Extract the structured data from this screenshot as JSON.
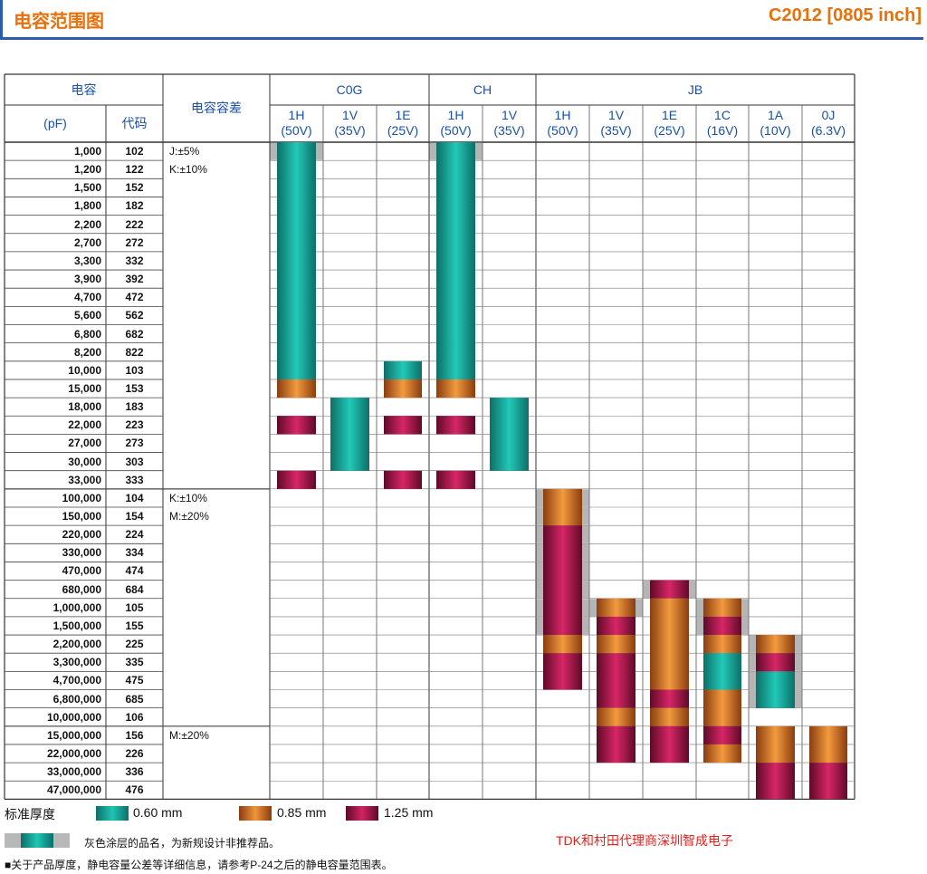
{
  "header": {
    "title": "电容范围图",
    "part": "C2012 [0805 inch]"
  },
  "table": {
    "head_cap": "电容",
    "head_pf": "(pF)",
    "head_code": "代码",
    "head_tol": "电容容差",
    "groups": [
      {
        "name": "C0G"
      },
      {
        "name": "CH"
      },
      {
        "name": "JB"
      }
    ],
    "volts": [
      {
        "top": "1H",
        "bot": "(50V)"
      },
      {
        "top": "1V",
        "bot": "(35V)"
      },
      {
        "top": "1E",
        "bot": "(25V)"
      },
      {
        "top": "1H",
        "bot": "(50V)"
      },
      {
        "top": "1V",
        "bot": "(35V)"
      },
      {
        "top": "1H",
        "bot": "(50V)"
      },
      {
        "top": "1V",
        "bot": "(35V)"
      },
      {
        "top": "1E",
        "bot": "(25V)"
      },
      {
        "top": "1C",
        "bot": "(16V)"
      },
      {
        "top": "1A",
        "bot": "(10V)"
      },
      {
        "top": "0J",
        "bot": "(6.3V)"
      }
    ],
    "rows": [
      {
        "v": "1,000",
        "c": "102"
      },
      {
        "v": "1,200",
        "c": "122"
      },
      {
        "v": "1,500",
        "c": "152"
      },
      {
        "v": "1,800",
        "c": "182"
      },
      {
        "v": "2,200",
        "c": "222"
      },
      {
        "v": "2,700",
        "c": "272"
      },
      {
        "v": "3,300",
        "c": "332"
      },
      {
        "v": "3,900",
        "c": "392"
      },
      {
        "v": "4,700",
        "c": "472"
      },
      {
        "v": "5,600",
        "c": "562"
      },
      {
        "v": "6,800",
        "c": "682"
      },
      {
        "v": "8,200",
        "c": "822"
      },
      {
        "v": "10,000",
        "c": "103"
      },
      {
        "v": "15,000",
        "c": "153"
      },
      {
        "v": "18,000",
        "c": "183"
      },
      {
        "v": "22,000",
        "c": "223"
      },
      {
        "v": "27,000",
        "c": "273"
      },
      {
        "v": "30,000",
        "c": "303"
      },
      {
        "v": "33,000",
        "c": "333"
      },
      {
        "v": "100,000",
        "c": "104"
      },
      {
        "v": "150,000",
        "c": "154"
      },
      {
        "v": "220,000",
        "c": "224"
      },
      {
        "v": "330,000",
        "c": "334"
      },
      {
        "v": "470,000",
        "c": "474"
      },
      {
        "v": "680,000",
        "c": "684"
      },
      {
        "v": "1,000,000",
        "c": "105"
      },
      {
        "v": "1,500,000",
        "c": "155"
      },
      {
        "v": "2,200,000",
        "c": "225"
      },
      {
        "v": "3,300,000",
        "c": "335"
      },
      {
        "v": "4,700,000",
        "c": "475"
      },
      {
        "v": "6,800,000",
        "c": "685"
      },
      {
        "v": "10,000,000",
        "c": "106"
      },
      {
        "v": "15,000,000",
        "c": "156"
      },
      {
        "v": "22,000,000",
        "c": "226"
      },
      {
        "v": "33,000,000",
        "c": "336"
      },
      {
        "v": "47,000,000",
        "c": "476"
      }
    ],
    "tolerances": {
      "a1": "J:±5%",
      "a2": "K:±10%",
      "b1": "K:±10%",
      "b2": "M:±20%",
      "c1": "M:±20%"
    }
  },
  "ranges": [
    {
      "col": 0,
      "r0": 0,
      "r1": 13,
      "segs": [
        [
          0,
          12,
          "t"
        ],
        [
          13,
          13,
          "o"
        ]
      ],
      "grey": [
        0
      ]
    },
    {
      "col": 0,
      "r0": 15,
      "r1": 15,
      "segs": [
        [
          15,
          15,
          "m"
        ]
      ],
      "grey": []
    },
    {
      "col": 0,
      "r0": 18,
      "r1": 18,
      "segs": [
        [
          18,
          18,
          "m"
        ]
      ],
      "grey": []
    },
    {
      "col": 1,
      "r0": 14,
      "r1": 17,
      "segs": [
        [
          14,
          17,
          "t"
        ]
      ],
      "grey": []
    },
    {
      "col": 2,
      "r0": 12,
      "r1": 13,
      "segs": [
        [
          12,
          12,
          "t"
        ],
        [
          13,
          13,
          "o"
        ]
      ],
      "grey": []
    },
    {
      "col": 2,
      "r0": 15,
      "r1": 15,
      "segs": [
        [
          15,
          15,
          "m"
        ]
      ],
      "grey": []
    },
    {
      "col": 2,
      "r0": 18,
      "r1": 18,
      "segs": [
        [
          18,
          18,
          "m"
        ]
      ],
      "grey": []
    },
    {
      "col": 3,
      "r0": 0,
      "r1": 13,
      "segs": [
        [
          0,
          12,
          "t"
        ],
        [
          13,
          13,
          "o"
        ]
      ],
      "grey": [
        0
      ]
    },
    {
      "col": 3,
      "r0": 15,
      "r1": 15,
      "segs": [
        [
          15,
          15,
          "m"
        ]
      ],
      "grey": []
    },
    {
      "col": 3,
      "r0": 18,
      "r1": 18,
      "segs": [
        [
          18,
          18,
          "m"
        ]
      ],
      "grey": []
    },
    {
      "col": 4,
      "r0": 14,
      "r1": 17,
      "segs": [
        [
          14,
          17,
          "t"
        ]
      ],
      "grey": []
    },
    {
      "col": 5,
      "r0": 19,
      "r1": 29,
      "segs": [
        [
          19,
          20,
          "o"
        ],
        [
          21,
          26,
          "m"
        ],
        [
          27,
          27,
          "o"
        ],
        [
          28,
          29,
          "m"
        ]
      ],
      "grey": [
        19,
        20,
        21,
        22,
        23,
        24,
        25,
        26
      ]
    },
    {
      "col": 6,
      "r0": 25,
      "r1": 33,
      "segs": [
        [
          25,
          25,
          "o"
        ],
        [
          26,
          26,
          "m"
        ],
        [
          27,
          27,
          "o"
        ],
        [
          28,
          30,
          "m"
        ],
        [
          31,
          31,
          "o"
        ],
        [
          32,
          33,
          "m"
        ]
      ],
      "grey": [
        25
      ]
    },
    {
      "col": 7,
      "r0": 24,
      "r1": 33,
      "segs": [
        [
          24,
          24,
          "m"
        ],
        [
          25,
          29,
          "o"
        ],
        [
          30,
          30,
          "m"
        ],
        [
          31,
          31,
          "o"
        ],
        [
          32,
          33,
          "m"
        ]
      ],
      "grey": [
        24
      ]
    },
    {
      "col": 8,
      "r0": 25,
      "r1": 33,
      "segs": [
        [
          25,
          25,
          "o"
        ],
        [
          26,
          26,
          "m"
        ],
        [
          27,
          27,
          "o"
        ],
        [
          28,
          29,
          "t"
        ],
        [
          30,
          31,
          "o"
        ],
        [
          32,
          32,
          "m"
        ],
        [
          33,
          33,
          "o"
        ]
      ],
      "grey": [
        25,
        26
      ]
    },
    {
      "col": 9,
      "r0": 27,
      "r1": 30,
      "segs": [
        [
          27,
          27,
          "o"
        ],
        [
          28,
          28,
          "m"
        ],
        [
          29,
          30,
          "t"
        ]
      ],
      "grey": [
        27,
        28,
        29,
        30
      ]
    },
    {
      "col": 9,
      "r0": 32,
      "r1": 35,
      "segs": [
        [
          32,
          33,
          "o"
        ],
        [
          34,
          35,
          "m"
        ]
      ],
      "grey": []
    },
    {
      "col": 10,
      "r0": 32,
      "r1": 35,
      "segs": [
        [
          32,
          33,
          "o"
        ],
        [
          34,
          35,
          "m"
        ]
      ],
      "grey": []
    }
  ],
  "legend": {
    "label": "标准厚度",
    "items": [
      {
        "key": "t",
        "text": "0.60 mm",
        "color": "#1aa89a"
      },
      {
        "key": "o",
        "text": "0.85 mm",
        "color": "#e07b2a"
      },
      {
        "key": "m",
        "text": "1.25 mm",
        "color": "#b8174f"
      }
    ]
  },
  "notes": {
    "grey": "灰色涂层的品名，为新规设计非推荐品。",
    "ref": "■关于产品厚度，静电容量公差等详细信息，请参考P-24之后的静电容量范围表。",
    "ad": "TDK和村田代理商深圳智成电子"
  }
}
